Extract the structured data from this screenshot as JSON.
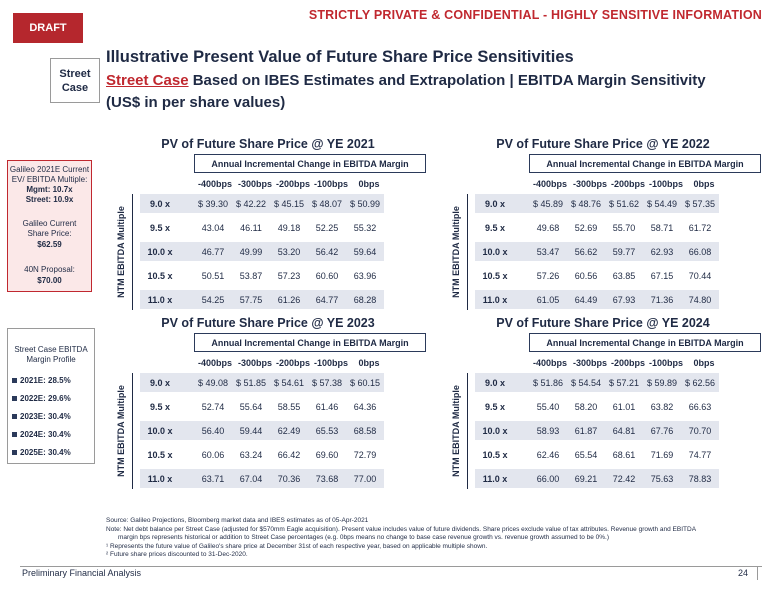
{
  "header": {
    "draft": "DRAFT",
    "confidential": "STRICTLY PRIVATE & CONFIDENTIAL - HIGHLY SENSITIVE INFORMATION",
    "badge_line1": "Street",
    "badge_line2": "Case",
    "title": "Illustrative Present Value of Future Share Price Sensitivities",
    "subtitle_red": "Street Case",
    "subtitle_rest": " Based on IBES Estimates and Extrapolation | EBITDA Margin Sensitivity",
    "subtitle_line2": "(US$ in per share values)"
  },
  "sidebar_top": {
    "l1": "Galileo 2021E Current",
    "l2": "EV/ EBITDA Multiple:",
    "l3": "Mgmt: 10.7x",
    "l4": "Street: 10.9x",
    "l5": "Galileo Current",
    "l6": "Share Price:",
    "l7": "$62.59",
    "l8": "40N Proposal:",
    "l9": "$70.00"
  },
  "sidebar_bottom": {
    "title1": "Street Case EBITDA",
    "title2": "Margin Profile",
    "items": [
      "2021E: 28.5%",
      "2022E: 29.6%",
      "2023E: 30.4%",
      "2024E: 30.4%",
      "2025E: 30.4%"
    ]
  },
  "common": {
    "header_box": "Annual Incremental Change in EBITDA Margin",
    "vertical_label": "NTM EBITDA Multiple",
    "col_headers": [
      "-400bps",
      "-300bps",
      "-200bps",
      "-100bps",
      "0bps"
    ],
    "row_labels": [
      "9.0 x",
      "9.5 x",
      "10.0 x",
      "10.5 x",
      "11.0 x"
    ]
  },
  "panels": [
    {
      "title": "PV of Future Share Price @ YE 2021",
      "rows": [
        [
          "$ 39.30",
          "$ 42.22",
          "$ 45.15",
          "$ 48.07",
          "$ 50.99"
        ],
        [
          "43.04",
          "46.11",
          "49.18",
          "52.25",
          "55.32"
        ],
        [
          "46.77",
          "49.99",
          "53.20",
          "56.42",
          "59.64"
        ],
        [
          "50.51",
          "53.87",
          "57.23",
          "60.60",
          "63.96"
        ],
        [
          "54.25",
          "57.75",
          "61.26",
          "64.77",
          "68.28"
        ]
      ]
    },
    {
      "title": "PV of Future Share Price @ YE 2022",
      "rows": [
        [
          "$ 45.89",
          "$ 48.76",
          "$ 51.62",
          "$ 54.49",
          "$ 57.35"
        ],
        [
          "49.68",
          "52.69",
          "55.70",
          "58.71",
          "61.72"
        ],
        [
          "53.47",
          "56.62",
          "59.77",
          "62.93",
          "66.08"
        ],
        [
          "57.26",
          "60.56",
          "63.85",
          "67.15",
          "70.44"
        ],
        [
          "61.05",
          "64.49",
          "67.93",
          "71.36",
          "74.80"
        ]
      ]
    },
    {
      "title": "PV of Future Share Price @ YE 2023",
      "rows": [
        [
          "$ 49.08",
          "$ 51.85",
          "$ 54.61",
          "$ 57.38",
          "$ 60.15"
        ],
        [
          "52.74",
          "55.64",
          "58.55",
          "61.46",
          "64.36"
        ],
        [
          "56.40",
          "59.44",
          "62.49",
          "65.53",
          "68.58"
        ],
        [
          "60.06",
          "63.24",
          "66.42",
          "69.60",
          "72.79"
        ],
        [
          "63.71",
          "67.04",
          "70.36",
          "73.68",
          "77.00"
        ]
      ]
    },
    {
      "title": "PV of Future Share Price @ YE 2024",
      "rows": [
        [
          "$ 51.86",
          "$ 54.54",
          "$ 57.21",
          "$ 59.89",
          "$ 62.56"
        ],
        [
          "55.40",
          "58.20",
          "61.01",
          "63.82",
          "66.63"
        ],
        [
          "58.93",
          "61.87",
          "64.81",
          "67.76",
          "70.70"
        ],
        [
          "62.46",
          "65.54",
          "68.61",
          "71.69",
          "74.77"
        ],
        [
          "66.00",
          "69.21",
          "72.42",
          "75.63",
          "78.83"
        ]
      ]
    }
  ],
  "notes": {
    "source": "Source: Galileo Projections, Bloomberg market data and IBES estimates as of 05-Apr-2021",
    "note1": "Note: Net debt balance per Street Case (adjusted for $570mm Eagle acquisition). Present value includes value of future dividends. Share prices exclude value of tax attributes. Revenue growth and EBITDA",
    "note2": "margin bps represents historical or addition to Street Case percentages (e.g. 0bps means no change to base case revenue growth vs. revenue growth assumed to be 0%.)",
    "note3": "¹ Represents the future value of Galileo's share price at December 31st of each respective year, based on applicable multiple shown.",
    "note4": "² Future share prices discounted to 31-Dec-2020."
  },
  "footer": {
    "left": "Preliminary Financial Analysis",
    "page": "24"
  }
}
